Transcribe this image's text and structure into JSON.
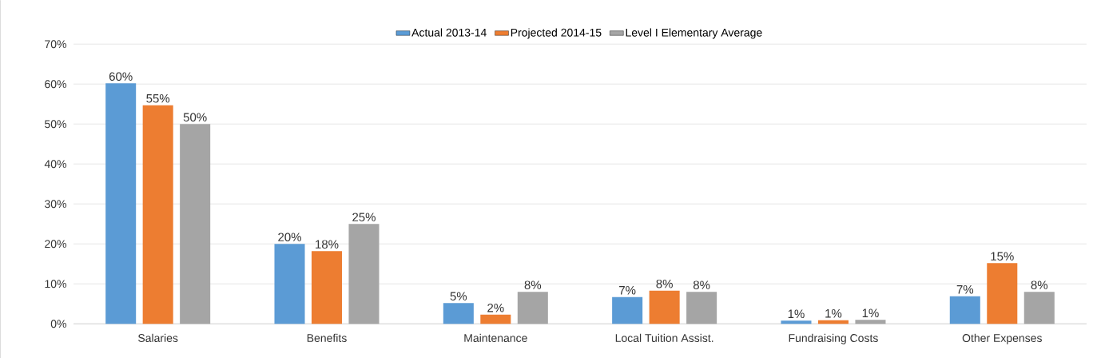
{
  "chart_data": {
    "type": "bar",
    "categories": [
      "Salaries",
      "Benefits",
      "Maintenance",
      "Local Tuition Assist.",
      "Fundraising Costs",
      "Other Expenses"
    ],
    "series": [
      {
        "name": "Actual 2013-14",
        "color": "#5b9bd5",
        "values": [
          60.2,
          20,
          5.2,
          6.7,
          0.8,
          6.9
        ],
        "value_labels": [
          "60%",
          "20%",
          "5%",
          "7%",
          "1%",
          "7%"
        ]
      },
      {
        "name": "Projected 2014-15",
        "color": "#ed7d31",
        "values": [
          54.7,
          18.2,
          2.3,
          8.3,
          0.9,
          15.2
        ],
        "value_labels": [
          "55%",
          "18%",
          "2%",
          "8%",
          "1%",
          "15%"
        ]
      },
      {
        "name": "Level I Elementary Average",
        "color": "#a5a5a5",
        "values": [
          50,
          25,
          8,
          8,
          1,
          8
        ],
        "value_labels": [
          "50%",
          "25%",
          "8%",
          "8%",
          "1%",
          "8%"
        ]
      }
    ],
    "ylim": [
      0,
      70
    ],
    "yticks": [
      {
        "value": 0,
        "label": "0%"
      },
      {
        "value": 10,
        "label": "10%"
      },
      {
        "value": 20,
        "label": "20%"
      },
      {
        "value": 30,
        "label": "30%"
      },
      {
        "value": 40,
        "label": "40%"
      },
      {
        "value": 50,
        "label": "50%"
      },
      {
        "value": 60,
        "label": "60%"
      },
      {
        "value": 70,
        "label": "70%"
      }
    ],
    "grid": "y",
    "legend": "top"
  }
}
